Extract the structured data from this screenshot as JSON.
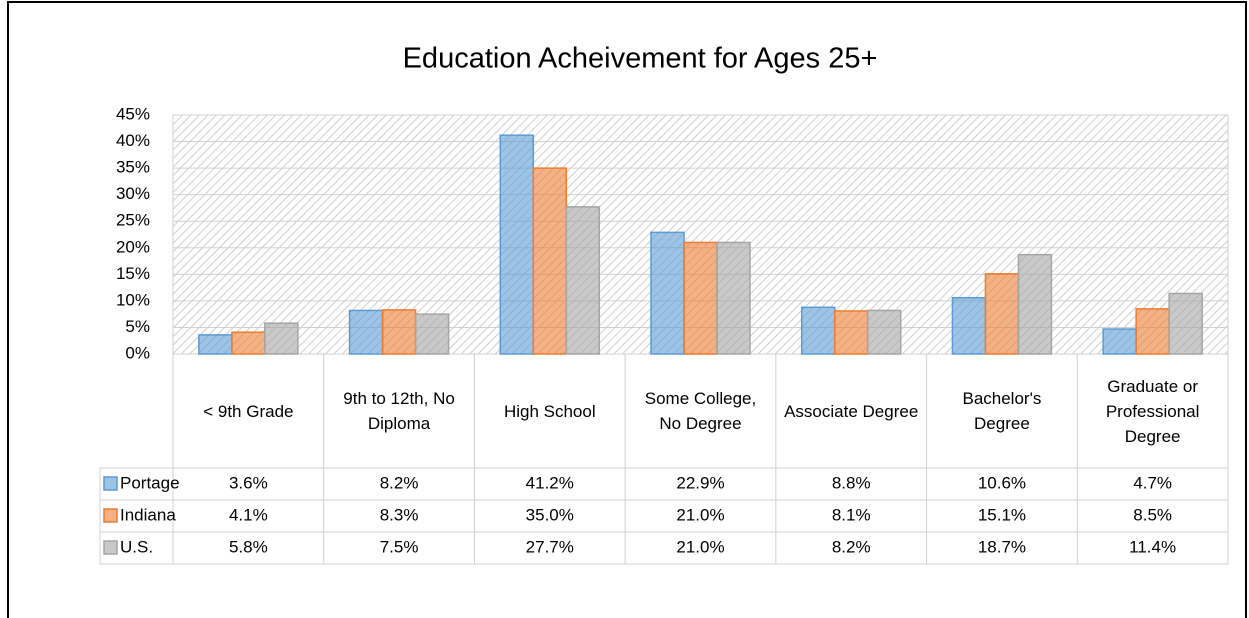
{
  "chart_data": {
    "type": "bar",
    "title": "Education Acheivement for Ages 25+",
    "categories": [
      "< 9th Grade",
      "9th to 12th, No Diploma",
      "High School",
      "Some College, No Degree",
      "Associate Degree",
      "Bachelor's Degree",
      "Graduate or Professional Degree"
    ],
    "series": [
      {
        "name": "Portage",
        "color": "#5b9bd5",
        "values": [
          3.6,
          8.2,
          41.2,
          22.9,
          8.8,
          10.6,
          4.7
        ],
        "value_labels": [
          "3.6%",
          "8.2%",
          "41.2%",
          "22.9%",
          "8.8%",
          "10.6%",
          "4.7%"
        ]
      },
      {
        "name": "Indiana",
        "color": "#ed7d31",
        "values": [
          4.1,
          8.3,
          35.0,
          21.0,
          8.1,
          15.1,
          8.5
        ],
        "value_labels": [
          "4.1%",
          "8.3%",
          "35.0%",
          "21.0%",
          "8.1%",
          "15.1%",
          "8.5%"
        ]
      },
      {
        "name": "U.S.",
        "color": "#a5a5a5",
        "values": [
          5.8,
          7.5,
          27.7,
          21.0,
          8.2,
          18.7,
          11.4
        ],
        "value_labels": [
          "5.8%",
          "7.5%",
          "27.7%",
          "21.0%",
          "8.2%",
          "18.7%",
          "11.4%"
        ]
      }
    ],
    "ylim": [
      0,
      45
    ],
    "yticks": [
      {
        "value": 0,
        "label": "0%"
      },
      {
        "value": 5,
        "label": "5%"
      },
      {
        "value": 10,
        "label": "10%"
      },
      {
        "value": 15,
        "label": "15%"
      },
      {
        "value": 20,
        "label": "20%"
      },
      {
        "value": 25,
        "label": "25%"
      },
      {
        "value": 30,
        "label": "30%"
      },
      {
        "value": 35,
        "label": "35%"
      },
      {
        "value": 40,
        "label": "40%"
      },
      {
        "value": 45,
        "label": "45%"
      }
    ],
    "grid": true
  }
}
